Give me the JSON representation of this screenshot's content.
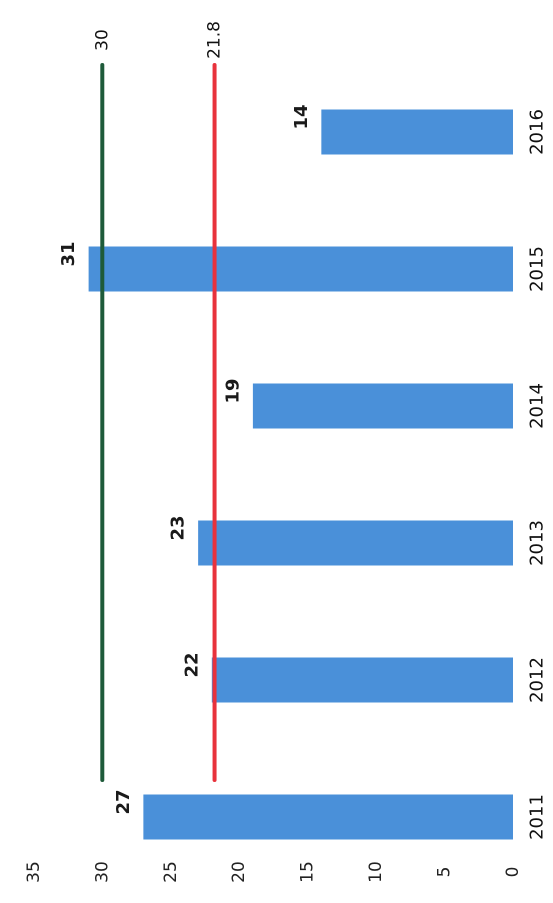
{
  "chart_data": {
    "type": "bar",
    "orientation": "rotated-90-clockwise",
    "categories": [
      "2011",
      "2012",
      "2013",
      "2014",
      "2015",
      "2016"
    ],
    "values": [
      27,
      22,
      23,
      19,
      31,
      14
    ],
    "data_labels": [
      "27",
      "22",
      "23",
      "19",
      "31",
      "14"
    ],
    "ylim": [
      0,
      35
    ],
    "yticks": [
      "0",
      "5",
      "10",
      "15",
      "20",
      "25",
      "30",
      "35"
    ],
    "grid": false,
    "legend": "none",
    "reference_lines": [
      {
        "value": 30,
        "label": "30",
        "color": "#1e5b3a"
      },
      {
        "value": 21.8,
        "label": "21.8",
        "color": "#e8323c"
      }
    ],
    "bar_color": "#4a90d9",
    "title": "",
    "xlabel": "",
    "ylabel": ""
  }
}
